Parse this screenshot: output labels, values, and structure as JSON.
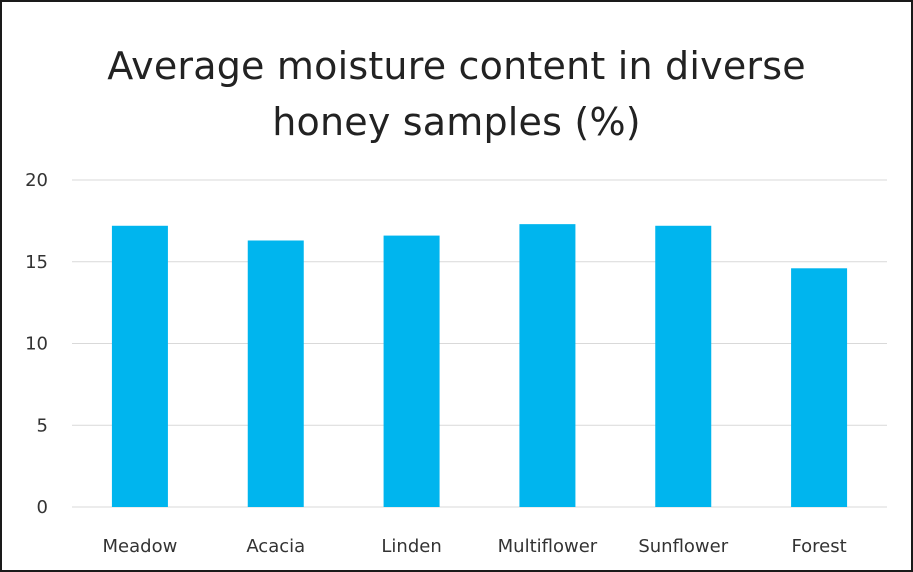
{
  "chart_data": {
    "type": "bar",
    "title": "Average moisture content in diverse honey samples (%)",
    "xlabel": "",
    "ylabel": "",
    "categories": [
      "Meadow",
      "Acacia",
      "Linden",
      "Multiflower",
      "Sunflower",
      "Forest"
    ],
    "values": [
      17.2,
      16.3,
      16.6,
      17.3,
      17.2,
      14.6
    ],
    "ylim": [
      0,
      20
    ],
    "yticks": [
      "0",
      "5",
      "10",
      "15",
      "20"
    ],
    "grid": true,
    "legend": "none",
    "colors": {
      "bar": "#00B5EE",
      "grid": "#d9d9d9",
      "text": "#222222"
    }
  }
}
